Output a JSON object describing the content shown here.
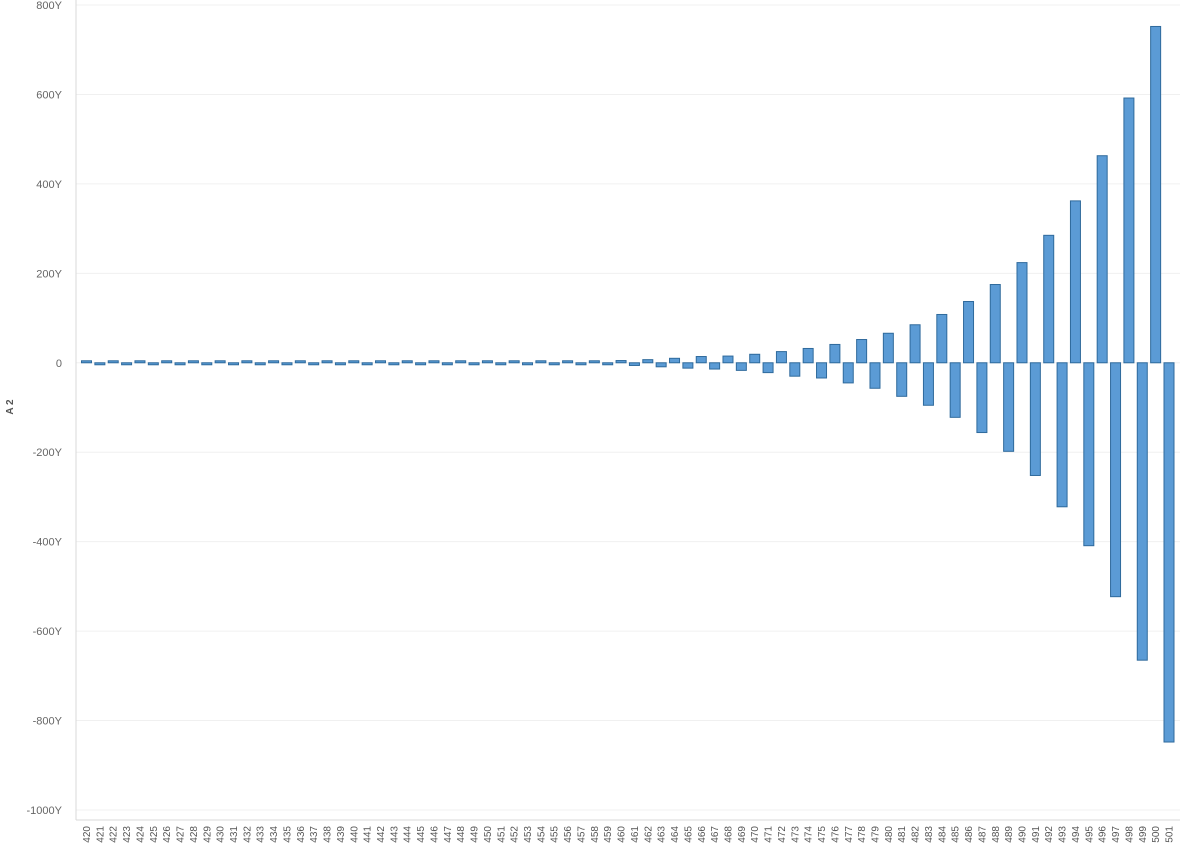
{
  "chart_data": {
    "type": "bar",
    "title": "",
    "xlabel": "",
    "ylabel": "A 2",
    "ylim": [
      -1000,
      800
    ],
    "yticks": [
      800,
      600,
      400,
      200,
      0,
      -200,
      -400,
      -600,
      -800,
      -1000
    ],
    "ytick_labels": [
      "800Y",
      "600Y",
      "400Y",
      "200Y",
      "0",
      "-200Y",
      "-400Y",
      "-600Y",
      "-800Y",
      "-1000Y"
    ],
    "bar_color": "#5b9bd5",
    "grid": true,
    "categories": [
      "420",
      "421",
      "422",
      "423",
      "424",
      "425",
      "426",
      "427",
      "428",
      "429",
      "430",
      "431",
      "432",
      "433",
      "434",
      "435",
      "436",
      "437",
      "438",
      "439",
      "440",
      "441",
      "442",
      "443",
      "444",
      "445",
      "446",
      "447",
      "448",
      "449",
      "450",
      "451",
      "452",
      "453",
      "454",
      "455",
      "456",
      "457",
      "458",
      "459",
      "460",
      "461",
      "462",
      "463",
      "464",
      "465",
      "466",
      "467",
      "468",
      "469",
      "470",
      "471",
      "472",
      "473",
      "474",
      "475",
      "476",
      "477",
      "478",
      "479",
      "480",
      "481",
      "482",
      "483",
      "484",
      "485",
      "486",
      "487",
      "488",
      "489",
      "490",
      "491",
      "492",
      "493",
      "494",
      "495",
      "496",
      "497",
      "498",
      "499",
      "500",
      "501"
    ],
    "values": [
      2,
      -1,
      2,
      -1,
      2,
      -1,
      2,
      -1,
      2,
      -1,
      2,
      -1,
      2,
      -1,
      2,
      -1,
      2,
      -1,
      2,
      -1,
      2,
      -1,
      2,
      -1,
      2,
      -1,
      2,
      -1,
      2,
      -1,
      2,
      -1,
      2,
      -1,
      2,
      -1,
      2,
      -3,
      3,
      -4,
      5,
      -6,
      7,
      -9,
      10,
      -12,
      14,
      -14,
      15,
      -17,
      19,
      -22,
      25,
      -30,
      32,
      -34,
      41,
      -45,
      52,
      -57,
      66,
      -75,
      85,
      -95,
      108,
      -122,
      137,
      -156,
      175,
      -198,
      224,
      -252,
      285,
      -322,
      362,
      -409,
      463,
      -523,
      592,
      -665,
      752,
      -848
    ]
  }
}
